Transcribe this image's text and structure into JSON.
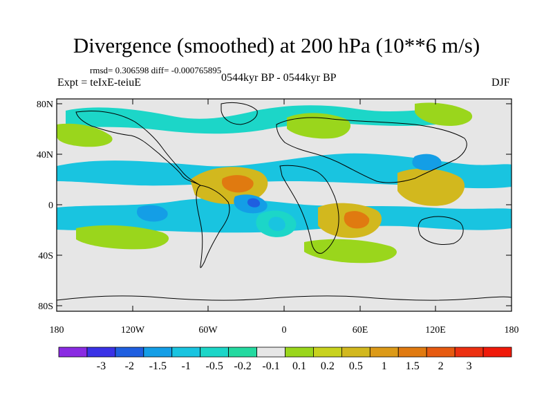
{
  "title": "Divergence (smoothed) at 200 hPa (10**6 m/s)",
  "stats": "rmsd= 0.306598 diff= -0.000765895",
  "experiment": "Expt = teIxE-teiuE",
  "period": "0544kyr BP - 0544kyr BP",
  "season": "DJF",
  "axes": {
    "lat_ticks": [
      "80N",
      "40N",
      "0",
      "40S",
      "80S"
    ],
    "lon_ticks": [
      "180",
      "120W",
      "60W",
      "0",
      "60E",
      "120E",
      "180"
    ]
  },
  "colorbar": {
    "colors": [
      "#8a2be2",
      "#3a32e6",
      "#1f5fe0",
      "#149ee6",
      "#19c4e0",
      "#1cd6c8",
      "#24d9a0",
      "#e6e6e6",
      "#9ad61c",
      "#c8d21e",
      "#d2b81e",
      "#dc9a18",
      "#e07a10",
      "#e65a10",
      "#ec3010",
      "#f01a0a"
    ],
    "labels": [
      "-3",
      "-2",
      "-1.5",
      "-1",
      "-0.5",
      "-0.2",
      "-0.1",
      "0.1",
      "0.2",
      "0.5",
      "1",
      "1.5",
      "2",
      "3"
    ]
  }
}
